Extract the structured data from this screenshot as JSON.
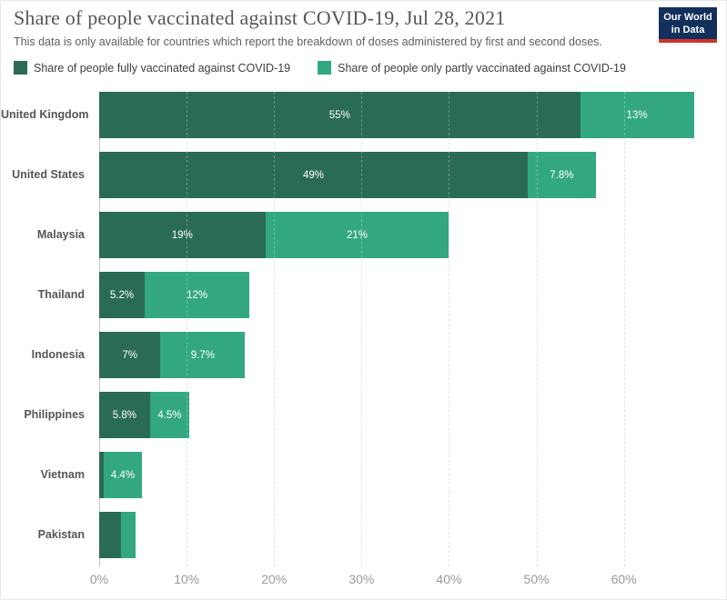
{
  "header": {
    "title": "Share of people vaccinated against COVID-19, Jul 28, 2021",
    "subtitle": "This data is only available for countries which report the breakdown of doses administered by first and second doses.",
    "logo": {
      "line1": "Our World",
      "line2": "in Data",
      "bg_color": "#12305a",
      "accent_color": "#d2342a"
    }
  },
  "colors": {
    "fully_vaccinated": "#2a6b54",
    "partly_vaccinated": "#33a880",
    "gridline": "#dcdcdc",
    "axis_line": "#c6c6c6",
    "tick_text": "#999999"
  },
  "chart_data": {
    "type": "bar",
    "stacked": true,
    "orientation": "horizontal",
    "title": "Share of people vaccinated against COVID-19, Jul 28, 2021",
    "categories": [
      "United Kingdom",
      "United States",
      "Malaysia",
      "Thailand",
      "Indonesia",
      "Philippines",
      "Vietnam",
      "Pakistan"
    ],
    "series": [
      {
        "name": "Share of people fully vaccinated against COVID-19",
        "color": "#2a6b54",
        "values": [
          55,
          49,
          19,
          5.2,
          7,
          5.8,
          0.5,
          2.5
        ],
        "labels": [
          "55%",
          "49%",
          "19%",
          "5.2%",
          "7%",
          "5.8%",
          "",
          ""
        ]
      },
      {
        "name": "Share of people only partly vaccinated against COVID-19",
        "color": "#33a880",
        "values": [
          13,
          7.8,
          21,
          12,
          9.7,
          4.5,
          4.4,
          1.7
        ],
        "labels": [
          "13%",
          "7.8%",
          "21%",
          "12%",
          "9.7%",
          "4.5%",
          "4.4%",
          ""
        ]
      }
    ],
    "xlabel": "",
    "ylabel": "",
    "xlim": [
      0,
      69.4
    ],
    "ticks": [
      0,
      10,
      20,
      30,
      40,
      50,
      60
    ],
    "tick_labels": [
      "0%",
      "10%",
      "20%",
      "30%",
      "40%",
      "50%",
      "60%"
    ],
    "grid": "vertical-dashed",
    "legend_position": "top"
  }
}
